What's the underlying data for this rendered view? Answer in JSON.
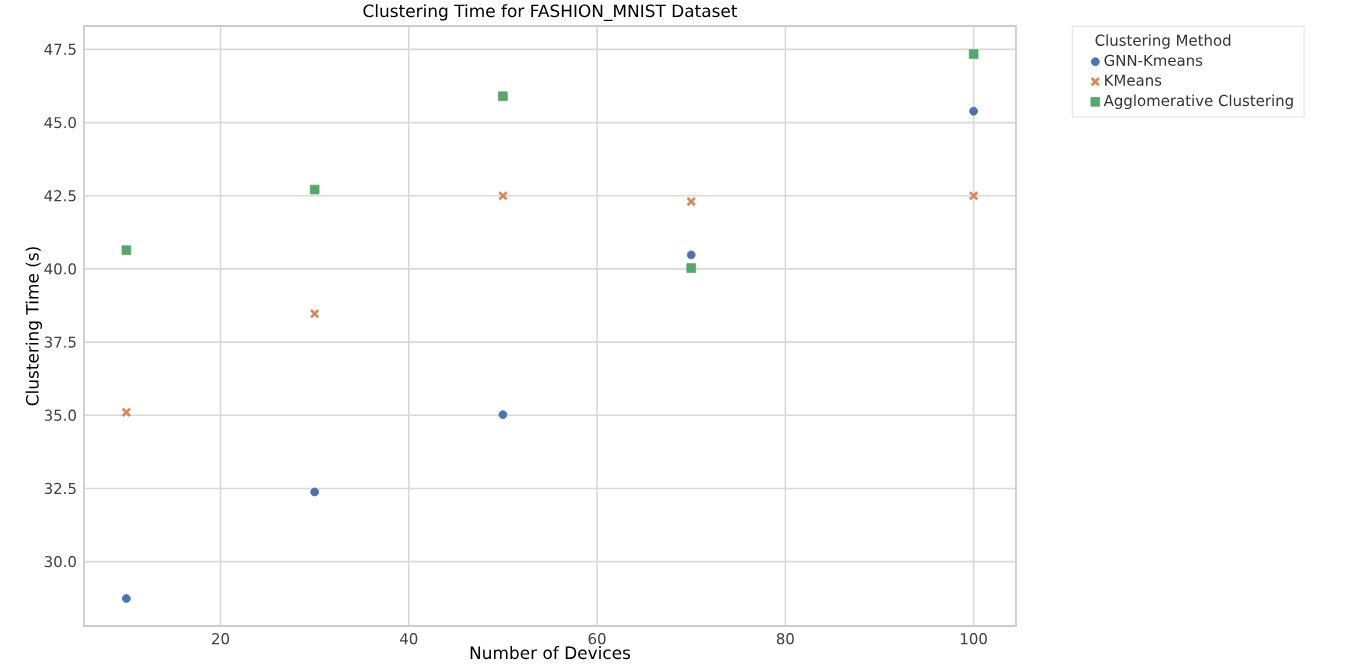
{
  "chart_data": {
    "type": "scatter",
    "title": "Clustering Time for FASHION_MNIST Dataset",
    "xlabel": "Number of Devices",
    "ylabel": "Clustering Time (s)",
    "legend_title": "Clustering Method",
    "x": [
      10,
      30,
      50,
      70,
      100
    ],
    "series": [
      {
        "name": "GNN-Kmeans",
        "color": "#4c72b0",
        "marker": "circle",
        "values": [
          28.74,
          32.38,
          35.02,
          40.48,
          45.39
        ]
      },
      {
        "name": "KMeans",
        "color": "#dd8452",
        "marker": "cross",
        "values": [
          35.1,
          38.47,
          42.5,
          42.3,
          42.5
        ]
      },
      {
        "name": "Agglomerative Clustering",
        "color": "#55a868",
        "marker": "square",
        "values": [
          40.64,
          42.71,
          45.9,
          40.03,
          47.34
        ]
      }
    ],
    "xlim": [
      5.5,
      104.5
    ],
    "ylim": [
      27.8,
      48.3
    ],
    "xticks": [
      20,
      40,
      60,
      80,
      100
    ],
    "yticks": [
      {
        "value": 30,
        "label": "30.0"
      },
      {
        "value": 32.5,
        "label": "32.5"
      },
      {
        "value": 35,
        "label": "35.0"
      },
      {
        "value": 37.5,
        "label": "37.5"
      },
      {
        "value": 40,
        "label": "40.0"
      },
      {
        "value": 42.5,
        "label": "42.5"
      },
      {
        "value": 45,
        "label": "45.0"
      },
      {
        "value": 47.5,
        "label": "47.5"
      }
    ],
    "grid": true,
    "legend": "top right"
  }
}
